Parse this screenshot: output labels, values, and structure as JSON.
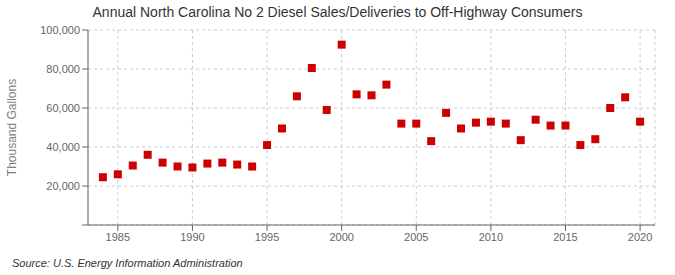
{
  "chart_data": {
    "type": "scatter",
    "title": "Annual North Carolina No 2 Diesel Sales/Deliveries to Off-Highway Consumers",
    "y_label": "Thousand Gallons",
    "annotation": "Source: U.S. Energy Information Administration",
    "x": [
      1984,
      1985,
      1986,
      1987,
      1988,
      1989,
      1990,
      1991,
      1992,
      1993,
      1994,
      1995,
      1996,
      1997,
      1998,
      1999,
      2000,
      2001,
      2002,
      2003,
      2004,
      2005,
      2006,
      2007,
      2008,
      2009,
      2010,
      2011,
      2012,
      2013,
      2014,
      2015,
      2016,
      2017,
      2018,
      2019,
      2020
    ],
    "values": [
      24500,
      26000,
      30500,
      36000,
      32000,
      30000,
      29500,
      31500,
      32000,
      31000,
      30000,
      41000,
      49500,
      66000,
      80500,
      59000,
      92500,
      67000,
      66500,
      72000,
      52000,
      52000,
      43000,
      57500,
      49500,
      52500,
      53000,
      52000,
      43500,
      54000,
      51000,
      51000,
      41000,
      44000,
      60000,
      65500,
      53000
    ],
    "color": "#cc0000",
    "marker": "square",
    "xlim": [
      1983,
      2021
    ],
    "ylim": [
      0,
      100000
    ],
    "xticks": [
      1985,
      1990,
      1995,
      2000,
      2005,
      2010,
      2015,
      2020
    ],
    "yticks": [
      {
        "value": 0,
        "label": null
      },
      {
        "value": 20000,
        "label": "20,000"
      },
      {
        "value": 40000,
        "label": "40,000"
      },
      {
        "value": 60000,
        "label": "60,000"
      },
      {
        "value": 80000,
        "label": "80,000"
      },
      {
        "value": 100000,
        "label": "100,000"
      }
    ],
    "grid": true
  }
}
